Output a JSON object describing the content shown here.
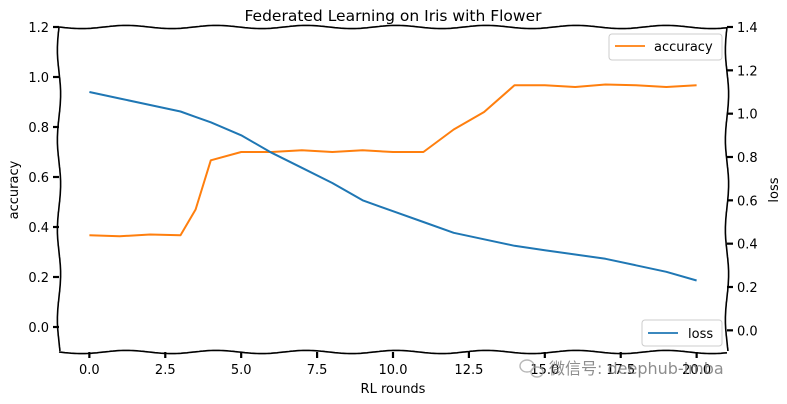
{
  "chart_data": {
    "type": "line",
    "title": "Federated Learning on Iris with Flower",
    "xlabel": "RL rounds",
    "ylabel_left": "accuracy",
    "ylabel_right": "loss",
    "xlim": [
      -1,
      21
    ],
    "ylim_left": [
      -0.1,
      1.2
    ],
    "ylim_right": [
      -0.1,
      1.4
    ],
    "x_ticks": [
      0.0,
      2.5,
      5.0,
      7.5,
      10.0,
      12.5,
      15.0,
      17.5,
      20.0
    ],
    "x_tick_labels": [
      "0.0",
      "2.5",
      "5.0",
      "7.5",
      "10.0",
      "12.5",
      "15.0",
      "17.5",
      "20.0"
    ],
    "y_left_ticks": [
      0.0,
      0.2,
      0.4,
      0.6,
      0.8,
      1.0,
      1.2
    ],
    "y_left_tick_labels": [
      "0.0",
      "0.2",
      "0.4",
      "0.6",
      "0.8",
      "1.0",
      "1.2"
    ],
    "y_right_ticks": [
      0.0,
      0.2,
      0.4,
      0.6,
      0.8,
      1.0,
      1.2,
      1.4
    ],
    "y_right_tick_labels": [
      "0.0",
      "0.2",
      "0.4",
      "0.6",
      "0.8",
      "1.0",
      "1.2",
      "1.4"
    ],
    "grid": false,
    "x": [
      0,
      1,
      2,
      3,
      3.5,
      4,
      5,
      6,
      7,
      8,
      9,
      10,
      11,
      12,
      13,
      14,
      15,
      16,
      17,
      18,
      19,
      20
    ],
    "series": [
      {
        "name": "accuracy",
        "axis": "left",
        "color": "#ff7f0e",
        "legend_position": "upper-right",
        "values": [
          0.367,
          0.363,
          0.37,
          0.367,
          0.47,
          0.667,
          0.7,
          0.7,
          0.707,
          0.7,
          0.707,
          0.7,
          0.7,
          0.79,
          0.86,
          0.967,
          0.967,
          0.96,
          0.97,
          0.967,
          0.96,
          0.967
        ]
      },
      {
        "name": "loss",
        "axis": "right",
        "color": "#1f77b4",
        "legend_position": "lower-right",
        "values": [
          1.1,
          1.07,
          1.04,
          1.01,
          0.985,
          0.96,
          0.9,
          0.82,
          0.75,
          0.68,
          0.6,
          0.55,
          0.5,
          0.45,
          0.42,
          0.39,
          0.37,
          0.35,
          0.33,
          0.3,
          0.27,
          0.23
        ]
      }
    ]
  },
  "watermark": {
    "icon": "wechat-icon",
    "text": "微信号: deephub-imba"
  }
}
